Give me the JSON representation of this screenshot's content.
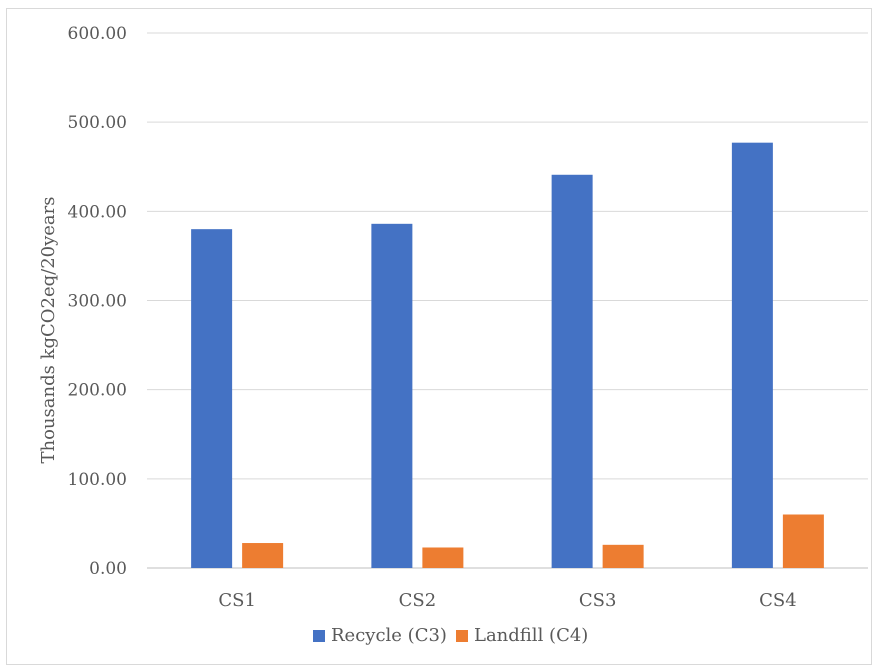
{
  "chart_data": {
    "type": "bar",
    "title": "",
    "xlabel": "",
    "ylabel": "Thousands kgCO2eq/20years",
    "categories": [
      "CS1",
      "CS2",
      "CS3",
      "CS4"
    ],
    "series": [
      {
        "name": "Recycle (C3)",
        "color": "#4472c4",
        "values": [
          380,
          386,
          441,
          477
        ]
      },
      {
        "name": "Landfill (C4)",
        "color": "#ed7d31",
        "values": [
          28,
          23,
          26,
          60
        ]
      }
    ],
    "ylim": [
      0,
      600
    ],
    "yticks": [
      "0.00",
      "100.00",
      "200.00",
      "300.00",
      "400.00",
      "500.00",
      "600.00"
    ],
    "grid": true,
    "legend": "bottom"
  }
}
